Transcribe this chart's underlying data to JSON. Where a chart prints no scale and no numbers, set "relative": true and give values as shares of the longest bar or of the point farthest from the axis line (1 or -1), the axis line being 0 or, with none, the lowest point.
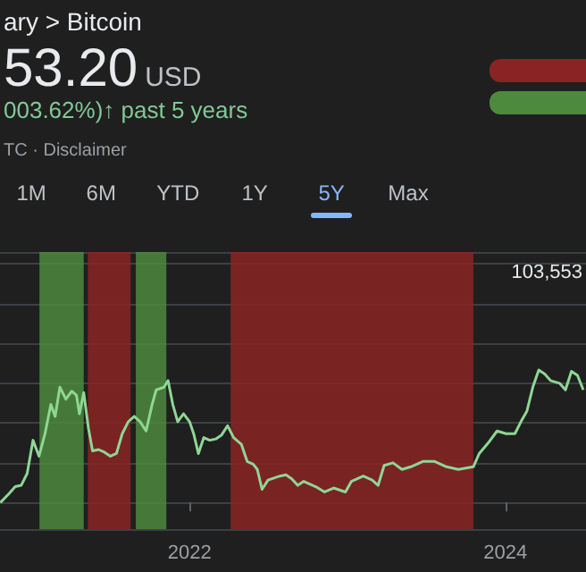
{
  "chart_data": {
    "type": "line",
    "title": "ary > Bitcoin",
    "subtitle": "53.20",
    "annotations": [
      "USD",
      "003.62%)↑ past 5 years",
      "TC · Disclaimer",
      "1M",
      "6M",
      "YTD",
      "1Y",
      "5Y",
      "Max",
      "103,553"
    ],
    "relative": true,
    "grid": "y",
    "marker": "none",
    "line_style": "solid",
    "xlim": [
      2020.8,
      2024.51
    ],
    "xticks": [
      2022,
      2024
    ],
    "bands": [
      {
        "axis": "x",
        "from": 2021.05,
        "to": 2021.33,
        "color": "#4e8a3e"
      },
      {
        "axis": "x",
        "from": 2021.356,
        "to": 2021.627,
        "color": "#8a2424"
      },
      {
        "axis": "x",
        "from": 2021.66,
        "to": 2021.853,
        "color": "#4e8a3e"
      },
      {
        "axis": "x",
        "from": 2022.26,
        "to": 2023.797,
        "color": "#8a2424"
      }
    ],
    "series": [
      {
        "color": "#8fd694",
        "x": [
          2020.802,
          2020.859,
          2020.896,
          2020.934,
          2020.972,
          2021.009,
          2021.047,
          2021.085,
          2021.122,
          2021.149,
          2021.179,
          2021.217,
          2021.254,
          2021.284,
          2021.303,
          2021.33,
          2021.36,
          2021.386,
          2021.424,
          2021.461,
          2021.499,
          2021.537,
          2021.574,
          2021.612,
          2021.65,
          2021.687,
          2021.725,
          2021.763,
          2021.789,
          2021.838,
          2021.864,
          2021.894,
          2021.925,
          2021.962,
          2022.0,
          2022.026,
          2022.056,
          2022.09,
          2022.128,
          2022.166,
          2022.203,
          2022.241,
          2022.279,
          2022.328,
          2022.365,
          2022.403,
          2022.429,
          2022.459,
          2022.497,
          2022.572,
          2022.61,
          2022.647,
          2022.685,
          2022.723,
          2022.799,
          2022.855,
          2022.912,
          2022.987,
          2023.025,
          2023.1,
          2023.156,
          2023.194,
          2023.232,
          2023.288,
          2023.345,
          2023.401,
          2023.477,
          2023.552,
          2023.627,
          2023.702,
          2023.797,
          2023.834,
          2023.891,
          2023.947,
          2024.004,
          2024.06,
          2024.098,
          2024.136,
          2024.173,
          2024.211,
          2024.249,
          2024.286,
          2024.343,
          2024.38,
          2024.418,
          2024.456,
          2024.493
        ],
        "values": [
          0.0,
          0.07,
          0.12,
          0.13,
          0.22,
          0.47,
          0.35,
          0.52,
          0.74,
          0.65,
          0.87,
          0.78,
          0.84,
          0.81,
          0.67,
          0.83,
          0.56,
          0.39,
          0.4,
          0.38,
          0.35,
          0.37,
          0.52,
          0.61,
          0.65,
          0.61,
          0.54,
          0.74,
          0.85,
          0.87,
          0.92,
          0.74,
          0.61,
          0.67,
          0.61,
          0.52,
          0.37,
          0.49,
          0.47,
          0.48,
          0.51,
          0.58,
          0.49,
          0.44,
          0.31,
          0.29,
          0.25,
          0.1,
          0.17,
          0.2,
          0.21,
          0.18,
          0.13,
          0.16,
          0.12,
          0.08,
          0.11,
          0.08,
          0.16,
          0.2,
          0.17,
          0.13,
          0.28,
          0.3,
          0.25,
          0.27,
          0.31,
          0.31,
          0.27,
          0.25,
          0.27,
          0.37,
          0.45,
          0.54,
          0.52,
          0.52,
          0.61,
          0.69,
          0.87,
          1.0,
          0.97,
          0.92,
          0.9,
          0.85,
          0.99,
          0.96,
          0.85
        ]
      }
    ]
  }
}
